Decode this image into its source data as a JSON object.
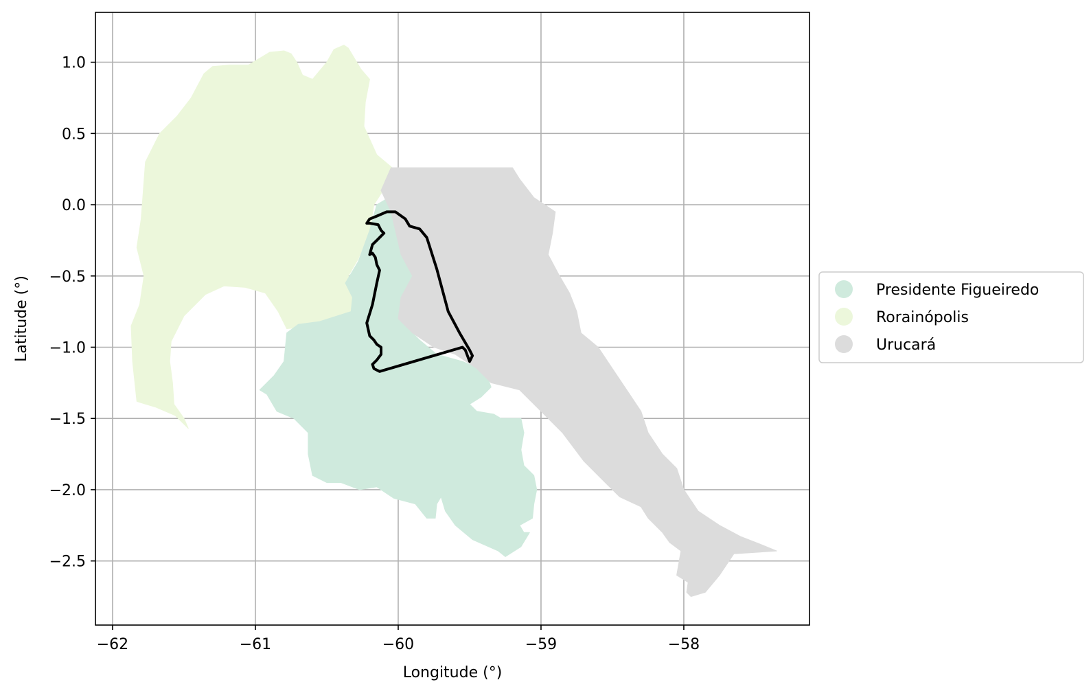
{
  "chart_data": {
    "type": "map",
    "xlabel": "Longitude (°)",
    "ylabel": "Latitude (°)",
    "xlim": [
      -62.12,
      -57.12
    ],
    "ylim": [
      -2.95,
      1.35
    ],
    "xticks": [
      -62,
      -61,
      -60,
      -59,
      -58
    ],
    "xtick_labels": [
      "−62",
      "−61",
      "−60",
      "−59",
      "−58"
    ],
    "yticks": [
      1.0,
      0.5,
      0.0,
      -0.5,
      -1.0,
      -1.5,
      -2.0,
      -2.5
    ],
    "ytick_labels": [
      "1.0",
      "0.5",
      "0.0",
      "−0.5",
      "−1.0",
      "−1.5",
      "−2.0",
      "−2.5"
    ],
    "grid": true,
    "legend_position": "right-outside",
    "legend": [
      {
        "label": "Presidente Figueiredo",
        "color": "#cfeadd"
      },
      {
        "label": "Rorainópolis",
        "color": "#ecf7db"
      },
      {
        "label": "Urucará",
        "color": "#dcdcdc"
      }
    ],
    "regions": [
      {
        "name": "Rorainópolis",
        "color": "#ecf7db",
        "coords": [
          [
            -61.83,
            -1.38
          ],
          [
            -61.86,
            -1.1
          ],
          [
            -61.87,
            -0.85
          ],
          [
            -61.81,
            -0.7
          ],
          [
            -61.78,
            -0.5
          ],
          [
            -61.83,
            -0.3
          ],
          [
            -61.8,
            -0.1
          ],
          [
            -61.77,
            0.3
          ],
          [
            -61.67,
            0.5
          ],
          [
            -61.55,
            0.62
          ],
          [
            -61.45,
            0.75
          ],
          [
            -61.36,
            0.92
          ],
          [
            -61.3,
            0.97
          ],
          [
            -61.18,
            0.98
          ],
          [
            -61.05,
            0.98
          ],
          [
            -60.9,
            1.07
          ],
          [
            -60.8,
            1.08
          ],
          [
            -60.75,
            1.06
          ],
          [
            -60.71,
            1.0
          ],
          [
            -60.67,
            0.91
          ],
          [
            -60.6,
            0.88
          ],
          [
            -60.5,
            1.0
          ],
          [
            -60.45,
            1.09
          ],
          [
            -60.38,
            1.12
          ],
          [
            -60.35,
            1.1
          ],
          [
            -60.26,
            0.95
          ],
          [
            -60.2,
            0.88
          ],
          [
            -60.23,
            0.72
          ],
          [
            -60.24,
            0.55
          ],
          [
            -60.15,
            0.35
          ],
          [
            -60.03,
            0.25
          ],
          [
            -60.1,
            0.11
          ],
          [
            -60.17,
            0.0
          ],
          [
            -60.2,
            -0.18
          ],
          [
            -60.28,
            -0.38
          ],
          [
            -60.35,
            -0.5
          ],
          [
            -60.28,
            -0.65
          ],
          [
            -60.32,
            -0.72
          ],
          [
            -60.32,
            -0.8
          ],
          [
            -60.55,
            -0.85
          ],
          [
            -60.78,
            -0.87
          ],
          [
            -60.84,
            -0.75
          ],
          [
            -60.93,
            -0.62
          ],
          [
            -61.07,
            -0.58
          ],
          [
            -61.22,
            -0.57
          ],
          [
            -61.35,
            -0.63
          ],
          [
            -61.5,
            -0.78
          ],
          [
            -61.59,
            -0.96
          ],
          [
            -61.6,
            -1.1
          ],
          [
            -61.58,
            -1.25
          ],
          [
            -61.57,
            -1.4
          ],
          [
            -61.5,
            -1.5
          ],
          [
            -61.47,
            -1.57
          ],
          [
            -61.56,
            -1.48
          ],
          [
            -61.7,
            -1.42
          ],
          [
            -61.8,
            -1.39
          ]
        ]
      },
      {
        "name": "Presidente Figueiredo",
        "color": "#cfeadd",
        "coords": [
          [
            -60.15,
            -0.0
          ],
          [
            -60.05,
            0.06
          ],
          [
            -59.95,
            0.02
          ],
          [
            -59.87,
            -0.1
          ],
          [
            -59.83,
            -0.3
          ],
          [
            -59.8,
            -0.5
          ],
          [
            -59.83,
            -0.65
          ],
          [
            -59.96,
            -0.72
          ],
          [
            -59.95,
            -0.85
          ],
          [
            -59.85,
            -0.95
          ],
          [
            -59.73,
            -1.05
          ],
          [
            -59.55,
            -1.1
          ],
          [
            -59.39,
            -1.17
          ],
          [
            -59.35,
            -1.28
          ],
          [
            -59.42,
            -1.35
          ],
          [
            -59.5,
            -1.4
          ],
          [
            -59.45,
            -1.45
          ],
          [
            -59.33,
            -1.47
          ],
          [
            -59.28,
            -1.5
          ],
          [
            -59.14,
            -1.5
          ],
          [
            -59.12,
            -1.6
          ],
          [
            -59.14,
            -1.72
          ],
          [
            -59.12,
            -1.83
          ],
          [
            -59.05,
            -1.9
          ],
          [
            -59.03,
            -2.0
          ],
          [
            -59.05,
            -2.1
          ],
          [
            -59.06,
            -2.2
          ],
          [
            -59.15,
            -2.25
          ],
          [
            -59.12,
            -2.3
          ],
          [
            -59.08,
            -2.3
          ],
          [
            -59.14,
            -2.4
          ],
          [
            -59.25,
            -2.47
          ],
          [
            -59.3,
            -2.43
          ],
          [
            -59.48,
            -2.35
          ],
          [
            -59.6,
            -2.25
          ],
          [
            -59.67,
            -2.15
          ],
          [
            -59.7,
            -2.05
          ],
          [
            -59.73,
            -2.1
          ],
          [
            -59.74,
            -2.2
          ],
          [
            -59.8,
            -2.2
          ],
          [
            -59.88,
            -2.1
          ],
          [
            -60.03,
            -2.06
          ],
          [
            -60.15,
            -1.98
          ],
          [
            -60.27,
            -2.0
          ],
          [
            -60.4,
            -1.95
          ],
          [
            -60.5,
            -1.95
          ],
          [
            -60.6,
            -1.9
          ],
          [
            -60.63,
            -1.75
          ],
          [
            -60.63,
            -1.6
          ],
          [
            -60.73,
            -1.5
          ],
          [
            -60.85,
            -1.45
          ],
          [
            -60.92,
            -1.33
          ],
          [
            -60.97,
            -1.3
          ],
          [
            -60.87,
            -1.2
          ],
          [
            -60.8,
            -1.1
          ],
          [
            -60.78,
            -0.9
          ],
          [
            -60.7,
            -0.84
          ],
          [
            -60.55,
            -0.82
          ],
          [
            -60.33,
            -0.75
          ],
          [
            -60.32,
            -0.65
          ],
          [
            -60.37,
            -0.55
          ],
          [
            -60.28,
            -0.4
          ],
          [
            -60.2,
            -0.18
          ]
        ]
      },
      {
        "name": "Urucará",
        "color": "#dcdcdc",
        "coords": [
          [
            -60.05,
            0.26
          ],
          [
            -59.2,
            0.26
          ],
          [
            -59.15,
            0.18
          ],
          [
            -59.05,
            0.05
          ],
          [
            -58.9,
            -0.05
          ],
          [
            -58.92,
            -0.2
          ],
          [
            -58.95,
            -0.35
          ],
          [
            -58.87,
            -0.5
          ],
          [
            -58.8,
            -0.62
          ],
          [
            -58.75,
            -0.75
          ],
          [
            -58.72,
            -0.9
          ],
          [
            -58.6,
            -1.0
          ],
          [
            -58.5,
            -1.15
          ],
          [
            -58.4,
            -1.3
          ],
          [
            -58.3,
            -1.45
          ],
          [
            -58.25,
            -1.6
          ],
          [
            -58.15,
            -1.75
          ],
          [
            -58.05,
            -1.85
          ],
          [
            -58.0,
            -2.0
          ],
          [
            -57.9,
            -2.15
          ],
          [
            -57.75,
            -2.25
          ],
          [
            -57.6,
            -2.33
          ],
          [
            -57.47,
            -2.38
          ],
          [
            -57.35,
            -2.43
          ],
          [
            -57.5,
            -2.44
          ],
          [
            -57.65,
            -2.45
          ],
          [
            -57.75,
            -2.6
          ],
          [
            -57.85,
            -2.72
          ],
          [
            -57.95,
            -2.75
          ],
          [
            -57.98,
            -2.72
          ],
          [
            -57.97,
            -2.65
          ],
          [
            -58.05,
            -2.6
          ],
          [
            -58.02,
            -2.43
          ],
          [
            -58.1,
            -2.37
          ],
          [
            -58.15,
            -2.3
          ],
          [
            -58.25,
            -2.2
          ],
          [
            -58.3,
            -2.12
          ],
          [
            -58.45,
            -2.05
          ],
          [
            -58.55,
            -1.95
          ],
          [
            -58.7,
            -1.8
          ],
          [
            -58.85,
            -1.6
          ],
          [
            -59.0,
            -1.45
          ],
          [
            -59.15,
            -1.3
          ],
          [
            -59.35,
            -1.25
          ],
          [
            -59.45,
            -1.15
          ],
          [
            -59.6,
            -1.05
          ],
          [
            -59.75,
            -1.0
          ],
          [
            -59.9,
            -0.9
          ],
          [
            -60.0,
            -0.8
          ],
          [
            -59.98,
            -0.65
          ],
          [
            -59.9,
            -0.5
          ],
          [
            -59.98,
            -0.35
          ],
          [
            -60.05,
            -0.05
          ],
          [
            -60.12,
            0.1
          ]
        ]
      }
    ],
    "outline": {
      "color": "#000000",
      "coords": [
        [
          -60.22,
          -0.13
        ],
        [
          -60.2,
          -0.1
        ],
        [
          -60.15,
          -0.08
        ],
        [
          -60.08,
          -0.05
        ],
        [
          -60.02,
          -0.05
        ],
        [
          -59.95,
          -0.1
        ],
        [
          -59.92,
          -0.15
        ],
        [
          -59.85,
          -0.17
        ],
        [
          -59.8,
          -0.23
        ],
        [
          -59.73,
          -0.45
        ],
        [
          -59.65,
          -0.75
        ],
        [
          -59.57,
          -0.9
        ],
        [
          -59.5,
          -1.02
        ],
        [
          -59.48,
          -1.06
        ],
        [
          -59.5,
          -1.1
        ],
        [
          -59.53,
          -1.02
        ],
        [
          -59.55,
          -1.0
        ],
        [
          -60.13,
          -1.17
        ],
        [
          -60.17,
          -1.15
        ],
        [
          -60.18,
          -1.12
        ],
        [
          -60.15,
          -1.09
        ],
        [
          -60.12,
          -1.05
        ],
        [
          -60.12,
          -1.0
        ],
        [
          -60.15,
          -0.98
        ],
        [
          -60.17,
          -0.95
        ],
        [
          -60.2,
          -0.92
        ],
        [
          -60.22,
          -0.83
        ],
        [
          -60.18,
          -0.7
        ],
        [
          -60.15,
          -0.55
        ],
        [
          -60.13,
          -0.46
        ],
        [
          -60.15,
          -0.42
        ],
        [
          -60.16,
          -0.37
        ],
        [
          -60.18,
          -0.34
        ],
        [
          -60.2,
          -0.35
        ],
        [
          -60.18,
          -0.28
        ],
        [
          -60.15,
          -0.25
        ],
        [
          -60.12,
          -0.22
        ],
        [
          -60.1,
          -0.2
        ],
        [
          -60.12,
          -0.18
        ],
        [
          -60.14,
          -0.14
        ],
        [
          -60.2,
          -0.13
        ]
      ]
    }
  }
}
